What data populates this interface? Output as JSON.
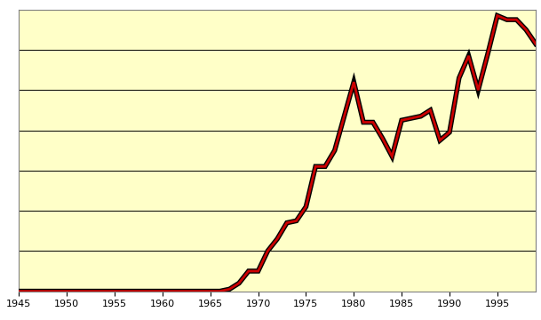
{
  "chart_data": {
    "type": "line",
    "x": [
      1945,
      1946,
      1947,
      1948,
      1949,
      1950,
      1951,
      1952,
      1953,
      1954,
      1955,
      1956,
      1957,
      1958,
      1959,
      1960,
      1961,
      1962,
      1963,
      1964,
      1965,
      1966,
      1967,
      1968,
      1969,
      1970,
      1971,
      1972,
      1973,
      1974,
      1975,
      1976,
      1977,
      1978,
      1979,
      1980,
      1981,
      1982,
      1983,
      1984,
      1985,
      1986,
      1987,
      1988,
      1989,
      1990,
      1991,
      1992,
      1993,
      1994,
      1995,
      1996,
      1997,
      1998,
      1999
    ],
    "values": [
      0,
      0,
      0,
      0,
      0,
      0,
      0,
      0,
      0,
      0,
      0,
      0,
      0,
      0,
      0,
      0,
      0,
      0,
      0,
      0,
      0,
      0,
      0.05,
      0.2,
      0.5,
      0.5,
      1.0,
      1.3,
      1.7,
      1.75,
      2.1,
      3.1,
      3.1,
      3.5,
      4.35,
      5.2,
      4.2,
      4.2,
      3.8,
      3.35,
      4.25,
      4.3,
      4.35,
      4.5,
      3.75,
      3.95,
      5.3,
      5.85,
      5.0,
      5.9,
      6.85,
      6.75,
      6.75,
      6.5,
      6.15
    ],
    "color": "#cc0000",
    "xlim": [
      1945,
      1999
    ],
    "xticks": [
      1945,
      1950,
      1955,
      1960,
      1965,
      1970,
      1975,
      1980,
      1985,
      1990,
      1995
    ],
    "ylim": [
      0,
      7
    ],
    "yticks": [
      0,
      1,
      2,
      3,
      4,
      5,
      6,
      7
    ],
    "grid": true,
    "tick_labels": "x"
  }
}
